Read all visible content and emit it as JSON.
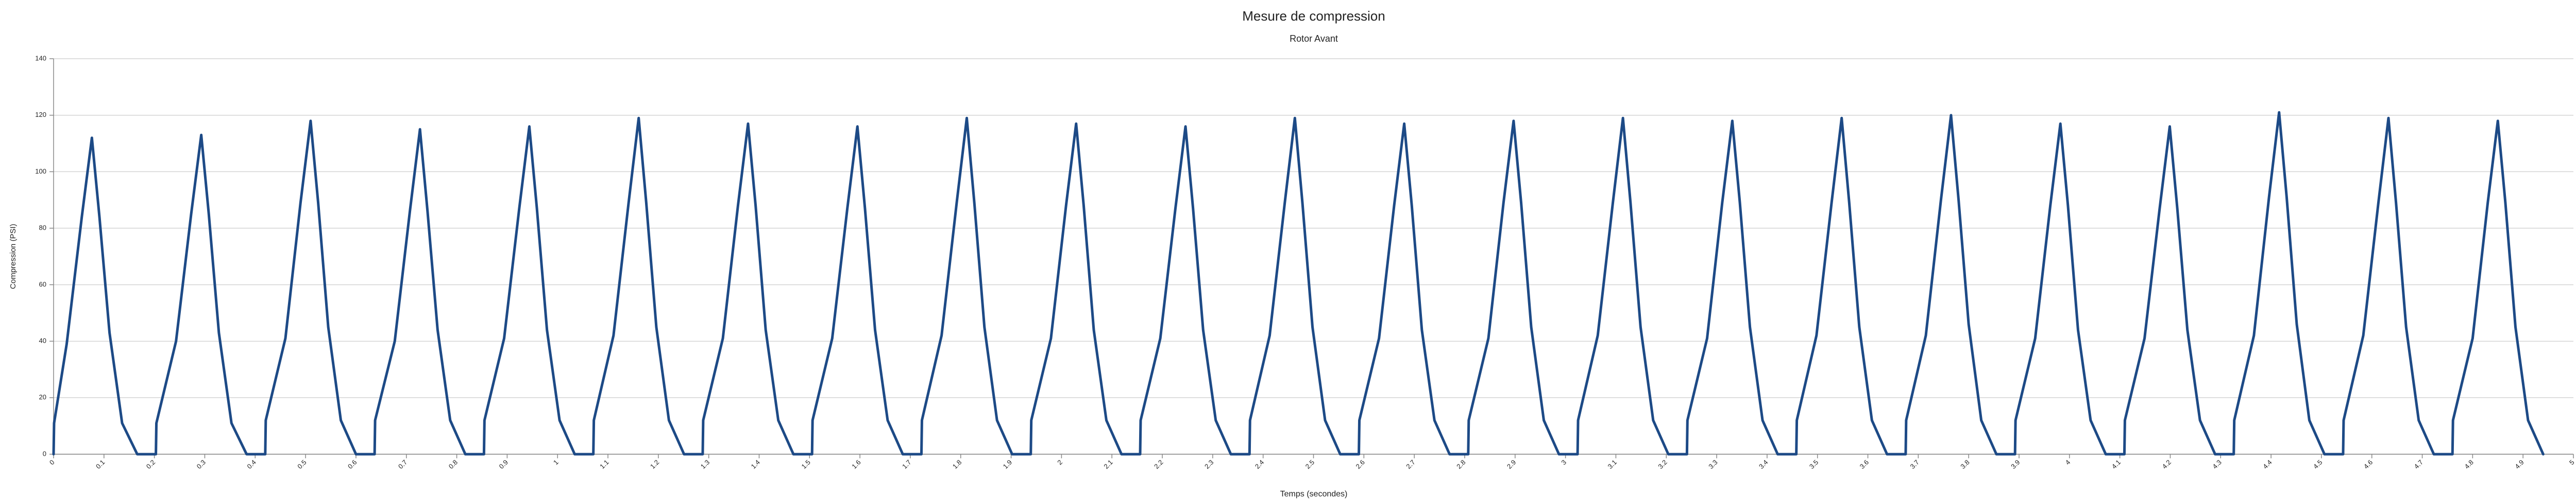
{
  "chart_data": {
    "type": "line",
    "title": "Mesure de compression",
    "subtitle": "Rotor Avant",
    "x_label": "Temps (secondes)",
    "y_label": "Compression (PSI)",
    "xlim": [
      0,
      5
    ],
    "ylim": [
      0,
      140
    ],
    "yticks": [
      0,
      20,
      40,
      60,
      80,
      100,
      120,
      140
    ],
    "xticks": [
      0,
      0.1,
      0.2,
      0.3,
      0.4,
      0.5,
      0.6,
      0.7,
      0.8,
      0.9,
      1,
      1.1,
      1.2,
      1.3,
      1.4,
      1.5,
      1.6,
      1.7,
      1.8,
      1.9,
      2,
      2.1,
      2.2,
      2.3,
      2.4,
      2.5,
      2.6,
      2.7,
      2.8,
      2.9,
      3,
      3.1,
      3.2,
      3.3,
      3.4,
      3.5,
      3.6,
      3.7,
      3.8,
      3.9,
      4,
      4.1,
      4.2,
      4.3,
      4.4,
      4.5,
      4.6,
      4.7,
      4.8,
      4.9,
      5
    ],
    "grid": true,
    "series": [
      {
        "color": "#1d4a86",
        "x": [
          0,
          0.001,
          0.026,
          0.056,
          0.076,
          0.091,
          0.111,
          0.136,
          0.166,
          0.203,
          0.204,
          0.243,
          0.273,
          0.293,
          0.308,
          0.328,
          0.353,
          0.383,
          0.42,
          0.421,
          0.46,
          0.49,
          0.51,
          0.525,
          0.545,
          0.57,
          0.6,
          0.637,
          0.638,
          0.677,
          0.707,
          0.727,
          0.742,
          0.762,
          0.787,
          0.817,
          0.854,
          0.855,
          0.894,
          0.924,
          0.944,
          0.959,
          0.979,
          1.004,
          1.034,
          1.071,
          1.072,
          1.111,
          1.141,
          1.161,
          1.176,
          1.196,
          1.221,
          1.251,
          1.288,
          1.289,
          1.328,
          1.358,
          1.378,
          1.393,
          1.413,
          1.438,
          1.468,
          1.505,
          1.506,
          1.545,
          1.575,
          1.595,
          1.61,
          1.63,
          1.655,
          1.685,
          1.722,
          1.723,
          1.762,
          1.792,
          1.812,
          1.827,
          1.847,
          1.872,
          1.902,
          1.939,
          1.94,
          1.979,
          2.009,
          2.029,
          2.044,
          2.064,
          2.089,
          2.119,
          2.156,
          2.157,
          2.196,
          2.226,
          2.246,
          2.261,
          2.281,
          2.306,
          2.336,
          2.373,
          2.374,
          2.413,
          2.443,
          2.463,
          2.478,
          2.498,
          2.523,
          2.553,
          2.59,
          2.591,
          2.63,
          2.66,
          2.68,
          2.695,
          2.715,
          2.74,
          2.77,
          2.807,
          2.808,
          2.847,
          2.877,
          2.897,
          2.912,
          2.932,
          2.957,
          2.987,
          3.024,
          3.025,
          3.064,
          3.094,
          3.114,
          3.129,
          3.149,
          3.174,
          3.204,
          3.241,
          3.242,
          3.281,
          3.311,
          3.331,
          3.346,
          3.366,
          3.391,
          3.421,
          3.458,
          3.459,
          3.498,
          3.528,
          3.548,
          3.563,
          3.583,
          3.608,
          3.638,
          3.675,
          3.676,
          3.715,
          3.745,
          3.765,
          3.78,
          3.8,
          3.825,
          3.855,
          3.892,
          3.893,
          3.932,
          3.962,
          3.982,
          3.997,
          4.017,
          4.042,
          4.072,
          4.109,
          4.11,
          4.149,
          4.179,
          4.199,
          4.214,
          4.234,
          4.259,
          4.289,
          4.326,
          4.327,
          4.366,
          4.396,
          4.416,
          4.431,
          4.451,
          4.476,
          4.506,
          4.543,
          4.544,
          4.583,
          4.613,
          4.633,
          4.648,
          4.668,
          4.693,
          4.723,
          4.76,
          4.761,
          4.8,
          4.83,
          4.85,
          4.865,
          4.885,
          4.91,
          4.94
        ],
        "values": [
          0,
          11,
          39,
          84,
          112,
          84,
          43,
          11,
          0,
          0,
          11,
          40,
          85,
          113,
          85,
          43,
          11,
          0,
          0,
          12,
          41,
          89,
          118,
          89,
          45,
          12,
          0,
          0,
          12,
          40,
          86,
          115,
          86,
          44,
          12,
          0,
          0,
          12,
          41,
          87,
          116,
          87,
          44,
          12,
          0,
          0,
          12,
          42,
          89,
          119,
          89,
          45,
          12,
          0,
          0,
          12,
          41,
          88,
          117,
          88,
          44,
          12,
          0,
          0,
          12,
          41,
          87,
          116,
          87,
          44,
          12,
          0,
          0,
          12,
          42,
          89,
          119,
          89,
          45,
          12,
          0,
          0,
          12,
          41,
          88,
          117,
          88,
          44,
          12,
          0,
          0,
          12,
          41,
          87,
          116,
          87,
          44,
          12,
          0,
          0,
          12,
          42,
          89,
          119,
          89,
          45,
          12,
          0,
          0,
          12,
          41,
          88,
          117,
          88,
          44,
          12,
          0,
          0,
          12,
          41,
          89,
          118,
          89,
          45,
          12,
          0,
          0,
          12,
          42,
          89,
          119,
          89,
          45,
          12,
          0,
          0,
          12,
          41,
          89,
          118,
          89,
          45,
          12,
          0,
          0,
          12,
          42,
          89,
          119,
          89,
          45,
          12,
          0,
          0,
          12,
          42,
          90,
          120,
          90,
          46,
          12,
          0,
          0,
          12,
          41,
          88,
          117,
          88,
          44,
          12,
          0,
          0,
          12,
          41,
          87,
          116,
          87,
          44,
          12,
          0,
          0,
          12,
          42,
          91,
          121,
          91,
          46,
          12,
          0,
          0,
          12,
          42,
          89,
          119,
          89,
          45,
          12,
          0,
          0,
          12,
          41,
          89,
          118,
          89,
          45,
          12,
          0
        ]
      }
    ]
  }
}
